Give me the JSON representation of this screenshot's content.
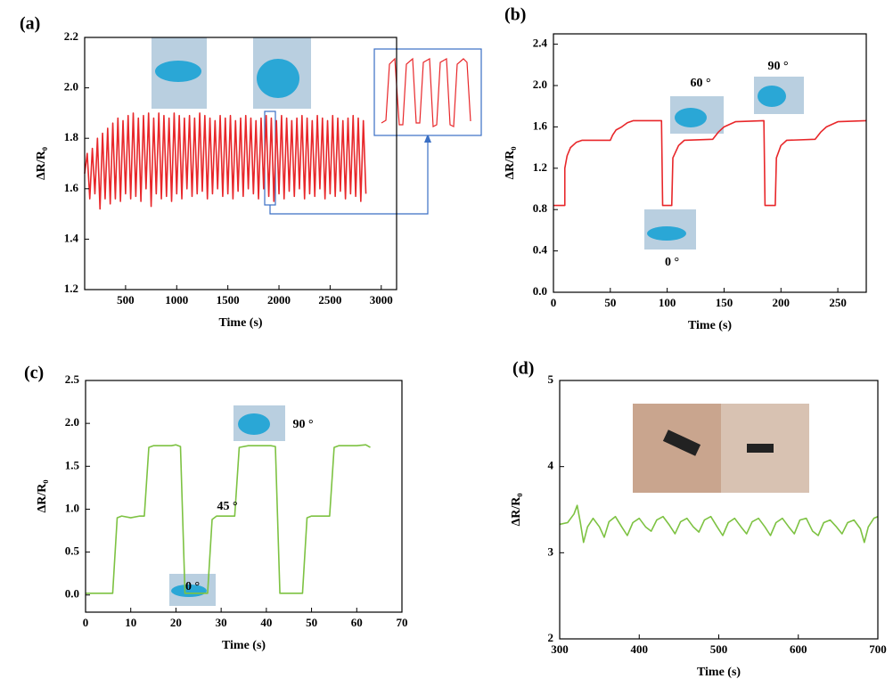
{
  "chart_data": [
    {
      "type": "line",
      "panel_label": "(a)",
      "x_label": "Time (s)",
      "y_label": "ΔR/R₀",
      "color": "#e8272a",
      "x": [
        100,
        125,
        150,
        175,
        200,
        225,
        250,
        275,
        300,
        325,
        350,
        375,
        400,
        425,
        450,
        475,
        500,
        525,
        550,
        575,
        600,
        625,
        650,
        675,
        700,
        725,
        750,
        775,
        800,
        825,
        850,
        875,
        900,
        925,
        950,
        975,
        1000,
        1025,
        1050,
        1075,
        1100,
        1125,
        1150,
        1175,
        1200,
        1225,
        1250,
        1275,
        1300,
        1325,
        1350,
        1375,
        1400,
        1425,
        1450,
        1475,
        1500,
        1525,
        1550,
        1575,
        1600,
        1625,
        1650,
        1675,
        1700,
        1725,
        1750,
        1775,
        1800,
        1825,
        1850,
        1875,
        1900,
        1925,
        1950,
        1975,
        2000,
        2025,
        2050,
        2075,
        2100,
        2125,
        2150,
        2175,
        2200,
        2225,
        2250,
        2275,
        2300,
        2325,
        2350,
        2375,
        2400,
        2425,
        2450,
        2475,
        2500,
        2525,
        2550,
        2575,
        2600,
        2625,
        2650,
        2675,
        2700,
        2725,
        2750,
        2775,
        2800,
        2825,
        2850
      ],
      "values": [
        1.66,
        1.74,
        1.56,
        1.76,
        1.58,
        1.8,
        1.52,
        1.82,
        1.56,
        1.84,
        1.54,
        1.86,
        1.56,
        1.88,
        1.55,
        1.87,
        1.58,
        1.89,
        1.56,
        1.9,
        1.57,
        1.88,
        1.55,
        1.89,
        1.6,
        1.9,
        1.53,
        1.88,
        1.58,
        1.9,
        1.56,
        1.89,
        1.57,
        1.88,
        1.55,
        1.9,
        1.58,
        1.89,
        1.56,
        1.88,
        1.6,
        1.89,
        1.57,
        1.88,
        1.58,
        1.9,
        1.59,
        1.89,
        1.56,
        1.88,
        1.58,
        1.87,
        1.6,
        1.89,
        1.57,
        1.88,
        1.58,
        1.89,
        1.56,
        1.87,
        1.59,
        1.88,
        1.57,
        1.89,
        1.6,
        1.88,
        1.58,
        1.87,
        1.56,
        1.88,
        1.6,
        1.89,
        1.57,
        1.88,
        1.55,
        1.87,
        1.58,
        1.89,
        1.56,
        1.88,
        1.59,
        1.87,
        1.57,
        1.88,
        1.6,
        1.89,
        1.56,
        1.88,
        1.58,
        1.87,
        1.57,
        1.89,
        1.6,
        1.88,
        1.56,
        1.87,
        1.58,
        1.89,
        1.57,
        1.88,
        1.59,
        1.87,
        1.56,
        1.88,
        1.58,
        1.89,
        1.57,
        1.88,
        1.55,
        1.87,
        1.58
      ],
      "xlim": [
        100,
        3150
      ],
      "xticks": [
        500,
        1000,
        1500,
        2000,
        2500,
        3000
      ],
      "ylim": [
        1.2,
        2.2
      ],
      "yticks": [
        1.2,
        1.4,
        1.6,
        1.8,
        {
          "value": 2,
          "label": "2.0"
        },
        2.2
      ]
    },
    {
      "type": "line",
      "panel_label": "(b)",
      "x_label": "Time (s)",
      "y_label": "ΔR/R₀",
      "color": "#e8272a",
      "annotations": [
        "60 °",
        "90 °",
        "0 °"
      ],
      "x": [
        0,
        10,
        10,
        12,
        15,
        20,
        25,
        50,
        52,
        55,
        60,
        65,
        70,
        95,
        96,
        104,
        105,
        110,
        115,
        140,
        145,
        150,
        160,
        185,
        186,
        195,
        196,
        200,
        205,
        230,
        235,
        240,
        250,
        275
      ],
      "values": [
        0.84,
        0.84,
        1.2,
        1.32,
        1.4,
        1.45,
        1.47,
        1.47,
        1.52,
        1.57,
        1.6,
        1.64,
        1.66,
        1.66,
        0.84,
        0.84,
        1.3,
        1.42,
        1.47,
        1.48,
        1.55,
        1.6,
        1.65,
        1.66,
        0.84,
        0.84,
        1.3,
        1.42,
        1.47,
        1.48,
        1.55,
        1.6,
        1.65,
        1.66
      ],
      "xlim": [
        0,
        275
      ],
      "xticks": [
        0,
        50,
        100,
        150,
        200,
        250
      ],
      "ylim": [
        0,
        2.5
      ],
      "yticks": [
        {
          "value": 0,
          "label": "0.0"
        },
        0.4,
        0.8,
        1.2,
        1.6,
        {
          "value": 2,
          "label": "2.0"
        },
        2.4
      ]
    },
    {
      "type": "line",
      "panel_label": "(c)",
      "x_label": "Time (s)",
      "y_label": "ΔR/R₀",
      "color": "#7dc242",
      "annotations": [
        "0 °",
        "45 °",
        "90 °"
      ],
      "x": [
        0,
        6,
        7,
        8,
        10,
        12,
        13,
        14,
        15,
        19,
        20,
        21,
        22,
        27,
        28,
        29,
        33,
        34,
        36,
        41,
        42,
        43,
        48,
        49,
        50,
        54,
        55,
        56,
        60,
        62,
        63
      ],
      "values": [
        0.02,
        0.02,
        0.9,
        0.92,
        0.9,
        0.92,
        0.92,
        1.72,
        1.74,
        1.74,
        1.75,
        1.73,
        0.02,
        0.02,
        0.88,
        0.92,
        0.92,
        1.72,
        1.74,
        1.74,
        1.73,
        0.02,
        0.02,
        0.9,
        0.92,
        0.92,
        1.72,
        1.74,
        1.74,
        1.75,
        1.72
      ],
      "xlim": [
        0,
        70
      ],
      "xticks": [
        0,
        10,
        20,
        30,
        40,
        50,
        60,
        70
      ],
      "ylim": [
        -0.2,
        2.5
      ],
      "yticks": [
        {
          "value": 0,
          "label": "0.0"
        },
        0.5,
        {
          "value": 1,
          "label": "1.0"
        },
        1.5,
        {
          "value": 2,
          "label": "2.0"
        },
        2.5
      ]
    },
    {
      "type": "line",
      "panel_label": "(d)",
      "x_label": "Time (s)",
      "y_label": "ΔR/R₀",
      "color": "#7dc242",
      "x": [
        300,
        310,
        318,
        322,
        326,
        330,
        335,
        342,
        350,
        356,
        362,
        370,
        378,
        385,
        392,
        400,
        408,
        415,
        422,
        430,
        438,
        445,
        452,
        460,
        468,
        475,
        482,
        490,
        498,
        505,
        512,
        520,
        528,
        535,
        542,
        550,
        558,
        565,
        572,
        580,
        588,
        595,
        602,
        610,
        618,
        625,
        632,
        640,
        648,
        655,
        662,
        670,
        678,
        683,
        688,
        695,
        700
      ],
      "values": [
        3.33,
        3.35,
        3.45,
        3.55,
        3.35,
        3.12,
        3.3,
        3.4,
        3.3,
        3.18,
        3.36,
        3.42,
        3.3,
        3.2,
        3.35,
        3.4,
        3.3,
        3.25,
        3.38,
        3.42,
        3.32,
        3.22,
        3.36,
        3.4,
        3.3,
        3.24,
        3.38,
        3.42,
        3.3,
        3.2,
        3.35,
        3.4,
        3.3,
        3.22,
        3.36,
        3.4,
        3.3,
        3.2,
        3.35,
        3.4,
        3.3,
        3.22,
        3.38,
        3.4,
        3.25,
        3.2,
        3.35,
        3.38,
        3.3,
        3.22,
        3.35,
        3.38,
        3.28,
        3.12,
        3.3,
        3.4,
        3.42
      ],
      "xlim": [
        300,
        700
      ],
      "xticks": [
        300,
        400,
        500,
        600,
        700
      ],
      "ylim": [
        2,
        5
      ],
      "yticks": [
        2,
        3,
        4,
        5
      ]
    }
  ]
}
